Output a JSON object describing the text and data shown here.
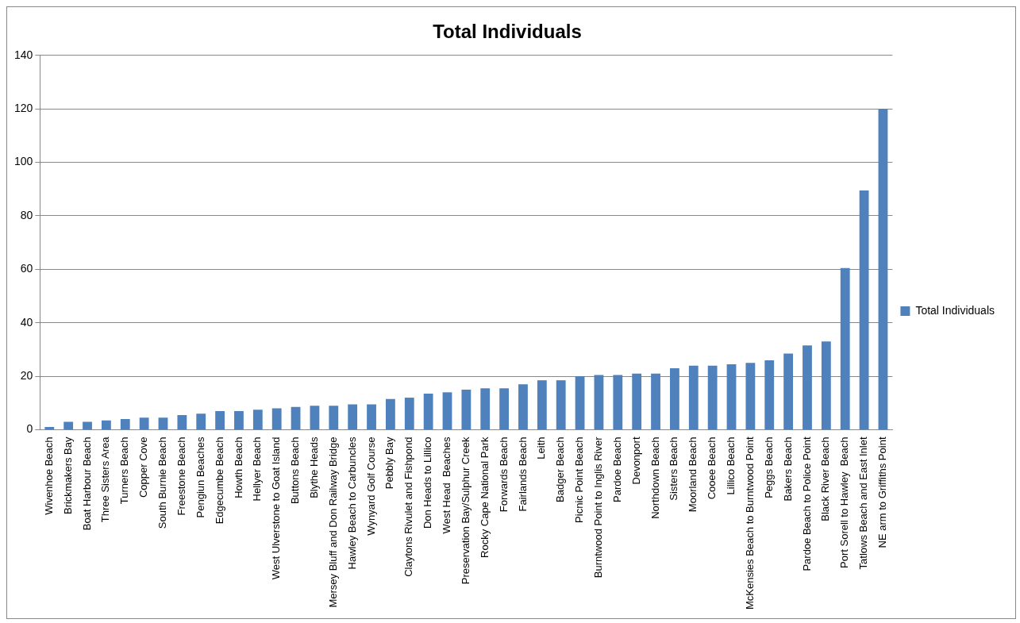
{
  "chart_data": {
    "type": "bar",
    "title": "Total Individuals",
    "categories": [
      "Wivenhoe Beach",
      "Brickmakers Bay",
      "Boat Harbour Beach",
      "Three Sisters Area",
      "Turners Beach",
      "Copper Cove",
      "South Burnie Beach",
      "Freestone Beach",
      "Pengiun Beaches",
      "Edgecumbe Beach",
      "Howth Beach",
      "Hellyer Beach",
      "West Ulverstone to Goat Island",
      "Buttons Beach",
      "Blythe Heads",
      "Mersey Bluff and Don Railway Bridge",
      "Hawley Beach to Carbuncles",
      "Wynyard Golf Course",
      "Pebbly Bay",
      "Claytons Rivulet and Fishpond",
      "Don Heads to Lillico",
      "West Head  Beaches",
      "Preservation Bay/Sulphur Creek",
      "Rocky Cape National Park",
      "Forwards Beach",
      "Fairlands Beach",
      "Leith",
      "Badger Beach",
      "Picnic Point Beach",
      "Burntwood Point to Inglis River",
      "Pardoe Beach",
      "Devonport",
      "Northdown Beach",
      "Sisters Beach",
      "Moorland Beach",
      "Cooee Beach",
      "Lillico Beach",
      "McKensies Beach to Burntwood Point",
      "Peggs Beach",
      "Bakers Beach",
      "Pardoe Beach to Police Point",
      "Black River Beach",
      "Port Sorell to Hawley  Beach",
      "Tatlows Beach and East Inlet",
      "NE arm to Griffiths Point"
    ],
    "series": [
      {
        "name": "Total Individuals",
        "color": "#4f81bd",
        "values": [
          1,
          3,
          3,
          3.5,
          4,
          4.5,
          4.5,
          5.5,
          6,
          7,
          7,
          7.5,
          8,
          8.5,
          9,
          9,
          9.5,
          9.5,
          11.5,
          12,
          13.5,
          14,
          15,
          15.5,
          15.5,
          17,
          18.5,
          18.5,
          20,
          20.5,
          20.5,
          21,
          21,
          23,
          24,
          24,
          24.5,
          25,
          26,
          28.5,
          31.5,
          33,
          60.5,
          89.5,
          120
        ]
      }
    ],
    "ylim": [
      0,
      140
    ],
    "yticks": [
      0,
      20,
      40,
      60,
      80,
      100,
      120,
      140
    ],
    "grid": "y",
    "legend": "right"
  }
}
